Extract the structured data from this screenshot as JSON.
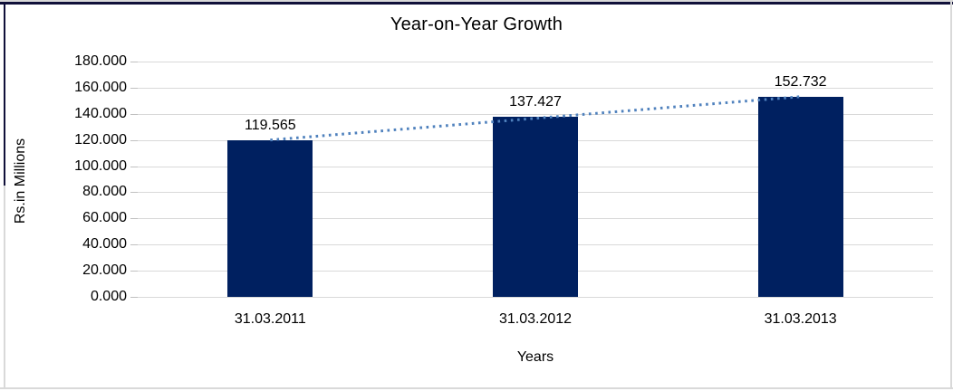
{
  "chart_data": {
    "type": "bar",
    "title": "Year-on-Year Growth",
    "xlabel": "Years",
    "ylabel": "Rs.in Millions",
    "categories": [
      "31.03.2011",
      "31.03.2012",
      "31.03.2013"
    ],
    "values": [
      119.565,
      137.427,
      152.732
    ],
    "value_labels": [
      "119.565",
      "137.427",
      "152.732"
    ],
    "ylim": [
      0,
      180
    ],
    "ytick_step": 20,
    "ytick_labels": [
      "0.000",
      "20.000",
      "40.000",
      "60.000",
      "80.000",
      "100.000",
      "120.000",
      "140.000",
      "160.000",
      "180.000"
    ],
    "grid": true,
    "legend": "none",
    "trendline": {
      "type": "linear",
      "style": "dotted",
      "color": "#4f81bd"
    },
    "colors": {
      "bar": "#002060",
      "gridline": "#d9d9d9",
      "tick": "#c0c0c0",
      "text": "#000000"
    }
  }
}
